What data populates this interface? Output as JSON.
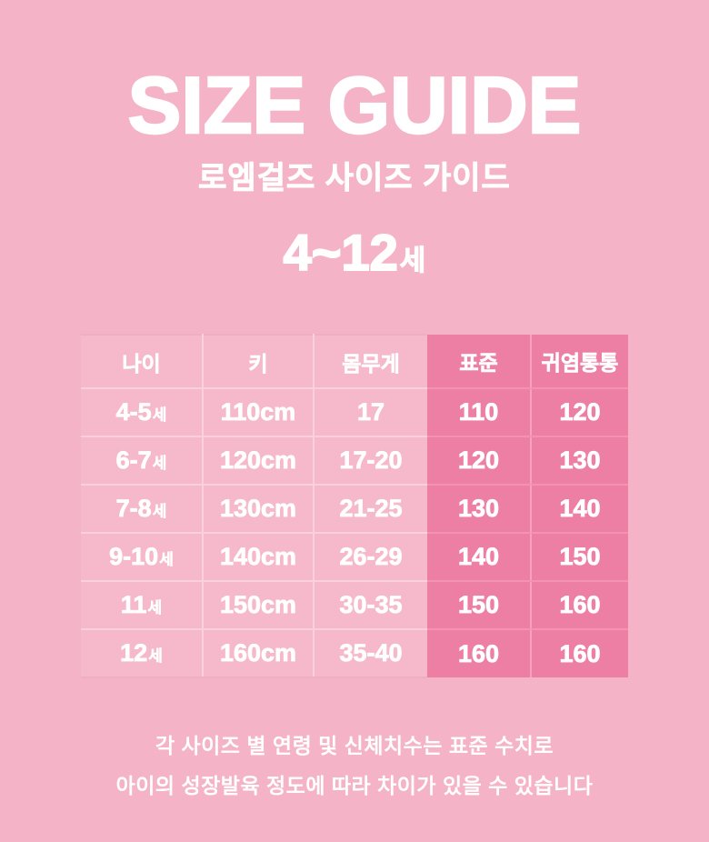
{
  "header": {
    "title": "SIZE GUIDE",
    "subtitle": "로엠걸즈 사이즈 가이드",
    "age_range": "4~12",
    "age_suffix": "세"
  },
  "footer": {
    "line1": "각 사이즈 별 연령 및 신체치수는 표준 수치로",
    "line2": "아이의 성장발육 정도에 따라 차이가 있을 수 있습니다"
  },
  "colors": {
    "page_background": "#f5b3c7",
    "cell_light": "#f6b8cb",
    "cell_highlight": "#ee7fa4",
    "separator_light": "#fad0dc",
    "separator_highlight": "#f392b1",
    "text": "#ffffff"
  },
  "chart_data": {
    "type": "table",
    "title": "SIZE GUIDE",
    "subtitle": "로엠걸즈 사이즈 가이드 4~12세",
    "columns": [
      "나이",
      "키",
      "몸무게",
      "표준",
      "귀염통통"
    ],
    "highlight_columns": [
      "표준",
      "귀염통통"
    ],
    "rows": [
      {
        "age": "4-5",
        "age_suffix": "세",
        "height": "110cm",
        "weight": "17",
        "standard": "110",
        "chubby": "120"
      },
      {
        "age": "6-7",
        "age_suffix": "세",
        "height": "120cm",
        "weight": "17-20",
        "standard": "120",
        "chubby": "130"
      },
      {
        "age": "7-8",
        "age_suffix": "세",
        "height": "130cm",
        "weight": "21-25",
        "standard": "130",
        "chubby": "140"
      },
      {
        "age": "9-10",
        "age_suffix": "세",
        "height": "140cm",
        "weight": "26-29",
        "standard": "140",
        "chubby": "150"
      },
      {
        "age": "11",
        "age_suffix": "세",
        "height": "150cm",
        "weight": "30-35",
        "standard": "150",
        "chubby": "160"
      },
      {
        "age": "12",
        "age_suffix": "세",
        "height": "160cm",
        "weight": "35-40",
        "standard": "160",
        "chubby": "160"
      }
    ]
  }
}
